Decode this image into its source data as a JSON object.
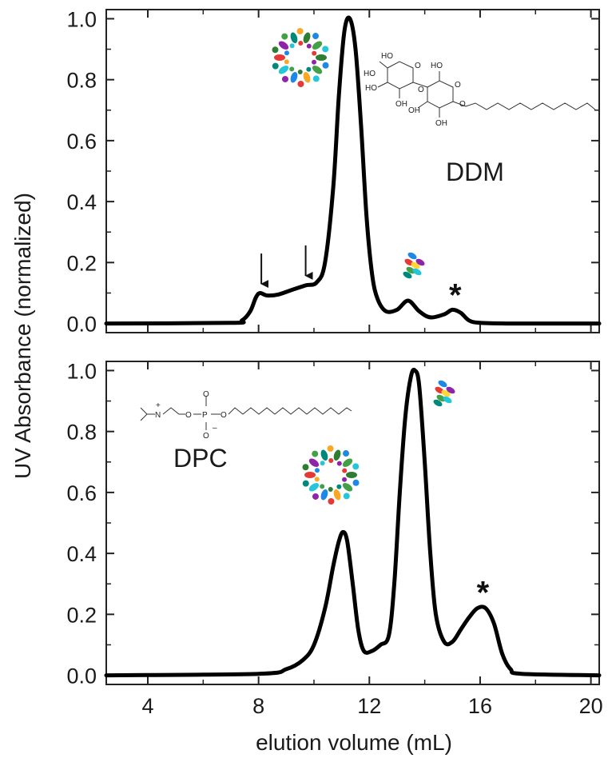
{
  "chart_data": {
    "type": "line",
    "xlabel": "elution volume (mL)",
    "ylabel": "UV Absorbance (normalized)",
    "xlim": [
      2.5,
      20.3
    ],
    "xticks": [
      4,
      8,
      12,
      16,
      20
    ],
    "xtick_labels": [
      "4",
      "8",
      "12",
      "16",
      "20"
    ],
    "shared_x_axis": true,
    "panels": [
      {
        "label": "DDM",
        "ylim": [
          -0.03,
          1.03
        ],
        "yticks": [
          0.0,
          0.2,
          0.4,
          0.6,
          0.8,
          1.0
        ],
        "ytick_labels": [
          "0.0",
          "0.2",
          "0.4",
          "0.6",
          "0.8",
          "1.0"
        ],
        "x": [
          2.5,
          7.0,
          7.4,
          7.7,
          7.9,
          8.05,
          8.3,
          8.7,
          9.2,
          9.7,
          10.1,
          10.4,
          10.7,
          10.9,
          11.1,
          11.3,
          11.5,
          11.7,
          11.9,
          12.1,
          12.3,
          12.6,
          13.0,
          13.4,
          13.8,
          14.2,
          14.7,
          15.0,
          15.3,
          15.6,
          16.0,
          17.0,
          20.3
        ],
        "y": [
          0.0,
          0.002,
          0.01,
          0.04,
          0.085,
          0.1,
          0.092,
          0.095,
          0.11,
          0.125,
          0.135,
          0.2,
          0.45,
          0.75,
          0.96,
          1.0,
          0.9,
          0.65,
          0.35,
          0.16,
          0.08,
          0.04,
          0.045,
          0.075,
          0.04,
          0.02,
          0.03,
          0.045,
          0.035,
          0.01,
          0.002,
          0.0,
          0.0
        ],
        "annotations": [
          {
            "type": "arrow",
            "x": 8.1
          },
          {
            "type": "arrow",
            "x": 9.7
          },
          {
            "type": "marker",
            "text": "*",
            "x": 15.1
          }
        ]
      },
      {
        "label": "DPC",
        "ylim": [
          -0.03,
          1.03
        ],
        "yticks": [
          0.0,
          0.2,
          0.4,
          0.6,
          0.8,
          1.0
        ],
        "ytick_labels": [
          "0.0",
          "0.2",
          "0.4",
          "0.6",
          "0.8",
          "1.0"
        ],
        "x": [
          2.5,
          8.0,
          9.0,
          9.6,
          10.0,
          10.4,
          10.7,
          10.9,
          11.05,
          11.2,
          11.4,
          11.6,
          11.8,
          12.1,
          12.4,
          12.7,
          12.9,
          13.1,
          13.3,
          13.5,
          13.65,
          13.8,
          14.0,
          14.2,
          14.4,
          14.7,
          15.0,
          15.3,
          15.6,
          15.9,
          16.2,
          16.5,
          16.8,
          17.1,
          17.5,
          20.3
        ],
        "y": [
          0.0,
          0.005,
          0.02,
          0.05,
          0.1,
          0.22,
          0.36,
          0.44,
          0.47,
          0.44,
          0.3,
          0.15,
          0.08,
          0.08,
          0.1,
          0.13,
          0.3,
          0.6,
          0.85,
          0.98,
          1.0,
          0.95,
          0.7,
          0.4,
          0.2,
          0.11,
          0.11,
          0.15,
          0.19,
          0.22,
          0.22,
          0.17,
          0.07,
          0.02,
          0.005,
          0.0
        ],
        "annotations": [
          {
            "type": "marker",
            "text": "*",
            "x": 16.1
          }
        ]
      }
    ]
  },
  "colors": {
    "line": "#000000",
    "axis": "#222222",
    "micelle_palette": [
      "#2e7d32",
      "#43a047",
      "#f9a825",
      "#1e88e5",
      "#26c6da",
      "#e53935",
      "#8e24aa",
      "#00897b"
    ]
  },
  "icons": {
    "ddm_micelle": "protein-micelle-ring-icon",
    "ddm_monomer": "protein-monomer-icon",
    "ddm_structure": "ddm-molecule-structure",
    "dpc_micelle": "protein-micelle-ring-icon",
    "dpc_monomer": "protein-monomer-icon",
    "dpc_structure": "dpc-molecule-structure"
  },
  "structures": {
    "ddm_atoms": [
      "HO",
      "HO",
      "HO",
      "O",
      "OH",
      "O",
      "HO",
      "O",
      "O",
      "OH",
      "OH",
      "O"
    ],
    "dpc_atoms": [
      "N",
      "+",
      "O",
      "P",
      "O",
      "O",
      "O",
      "–"
    ]
  }
}
